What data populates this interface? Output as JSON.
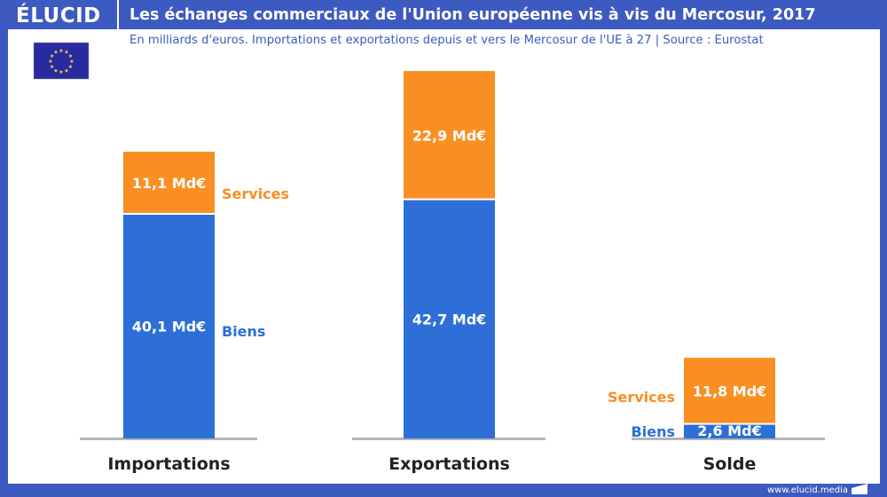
{
  "header": {
    "logo": "ÉLUCID",
    "title": "Les échanges commerciaux de l'Union européenne vis à vis du Mercosur, 2017"
  },
  "subtitle": "En milliards d'euros. Importations et exportations depuis et vers le Mercosur de l'UE à 27  |  Source : Eurostat",
  "footer": "www.elucid.media",
  "colors": {
    "frame": "#3d5ac0",
    "biens": "#2d6fd6",
    "services": "#f98f22",
    "baseline": "#b5b5b5"
  },
  "chart_data": {
    "type": "bar",
    "stacked": true,
    "categories": [
      "Importations",
      "Exportations",
      "Solde"
    ],
    "series": [
      {
        "name": "Biens",
        "values": [
          40.1,
          42.7,
          2.6
        ],
        "labels": [
          "40,1 Md€",
          "42,7 Md€",
          "2,6 Md€"
        ]
      },
      {
        "name": "Services",
        "values": [
          11.1,
          22.9,
          11.8
        ],
        "labels": [
          "11,1 Md€",
          "22,9 Md€",
          "11,8 Md€"
        ]
      }
    ],
    "legend_labels": {
      "services": "Services",
      "biens": "Biens"
    }
  }
}
